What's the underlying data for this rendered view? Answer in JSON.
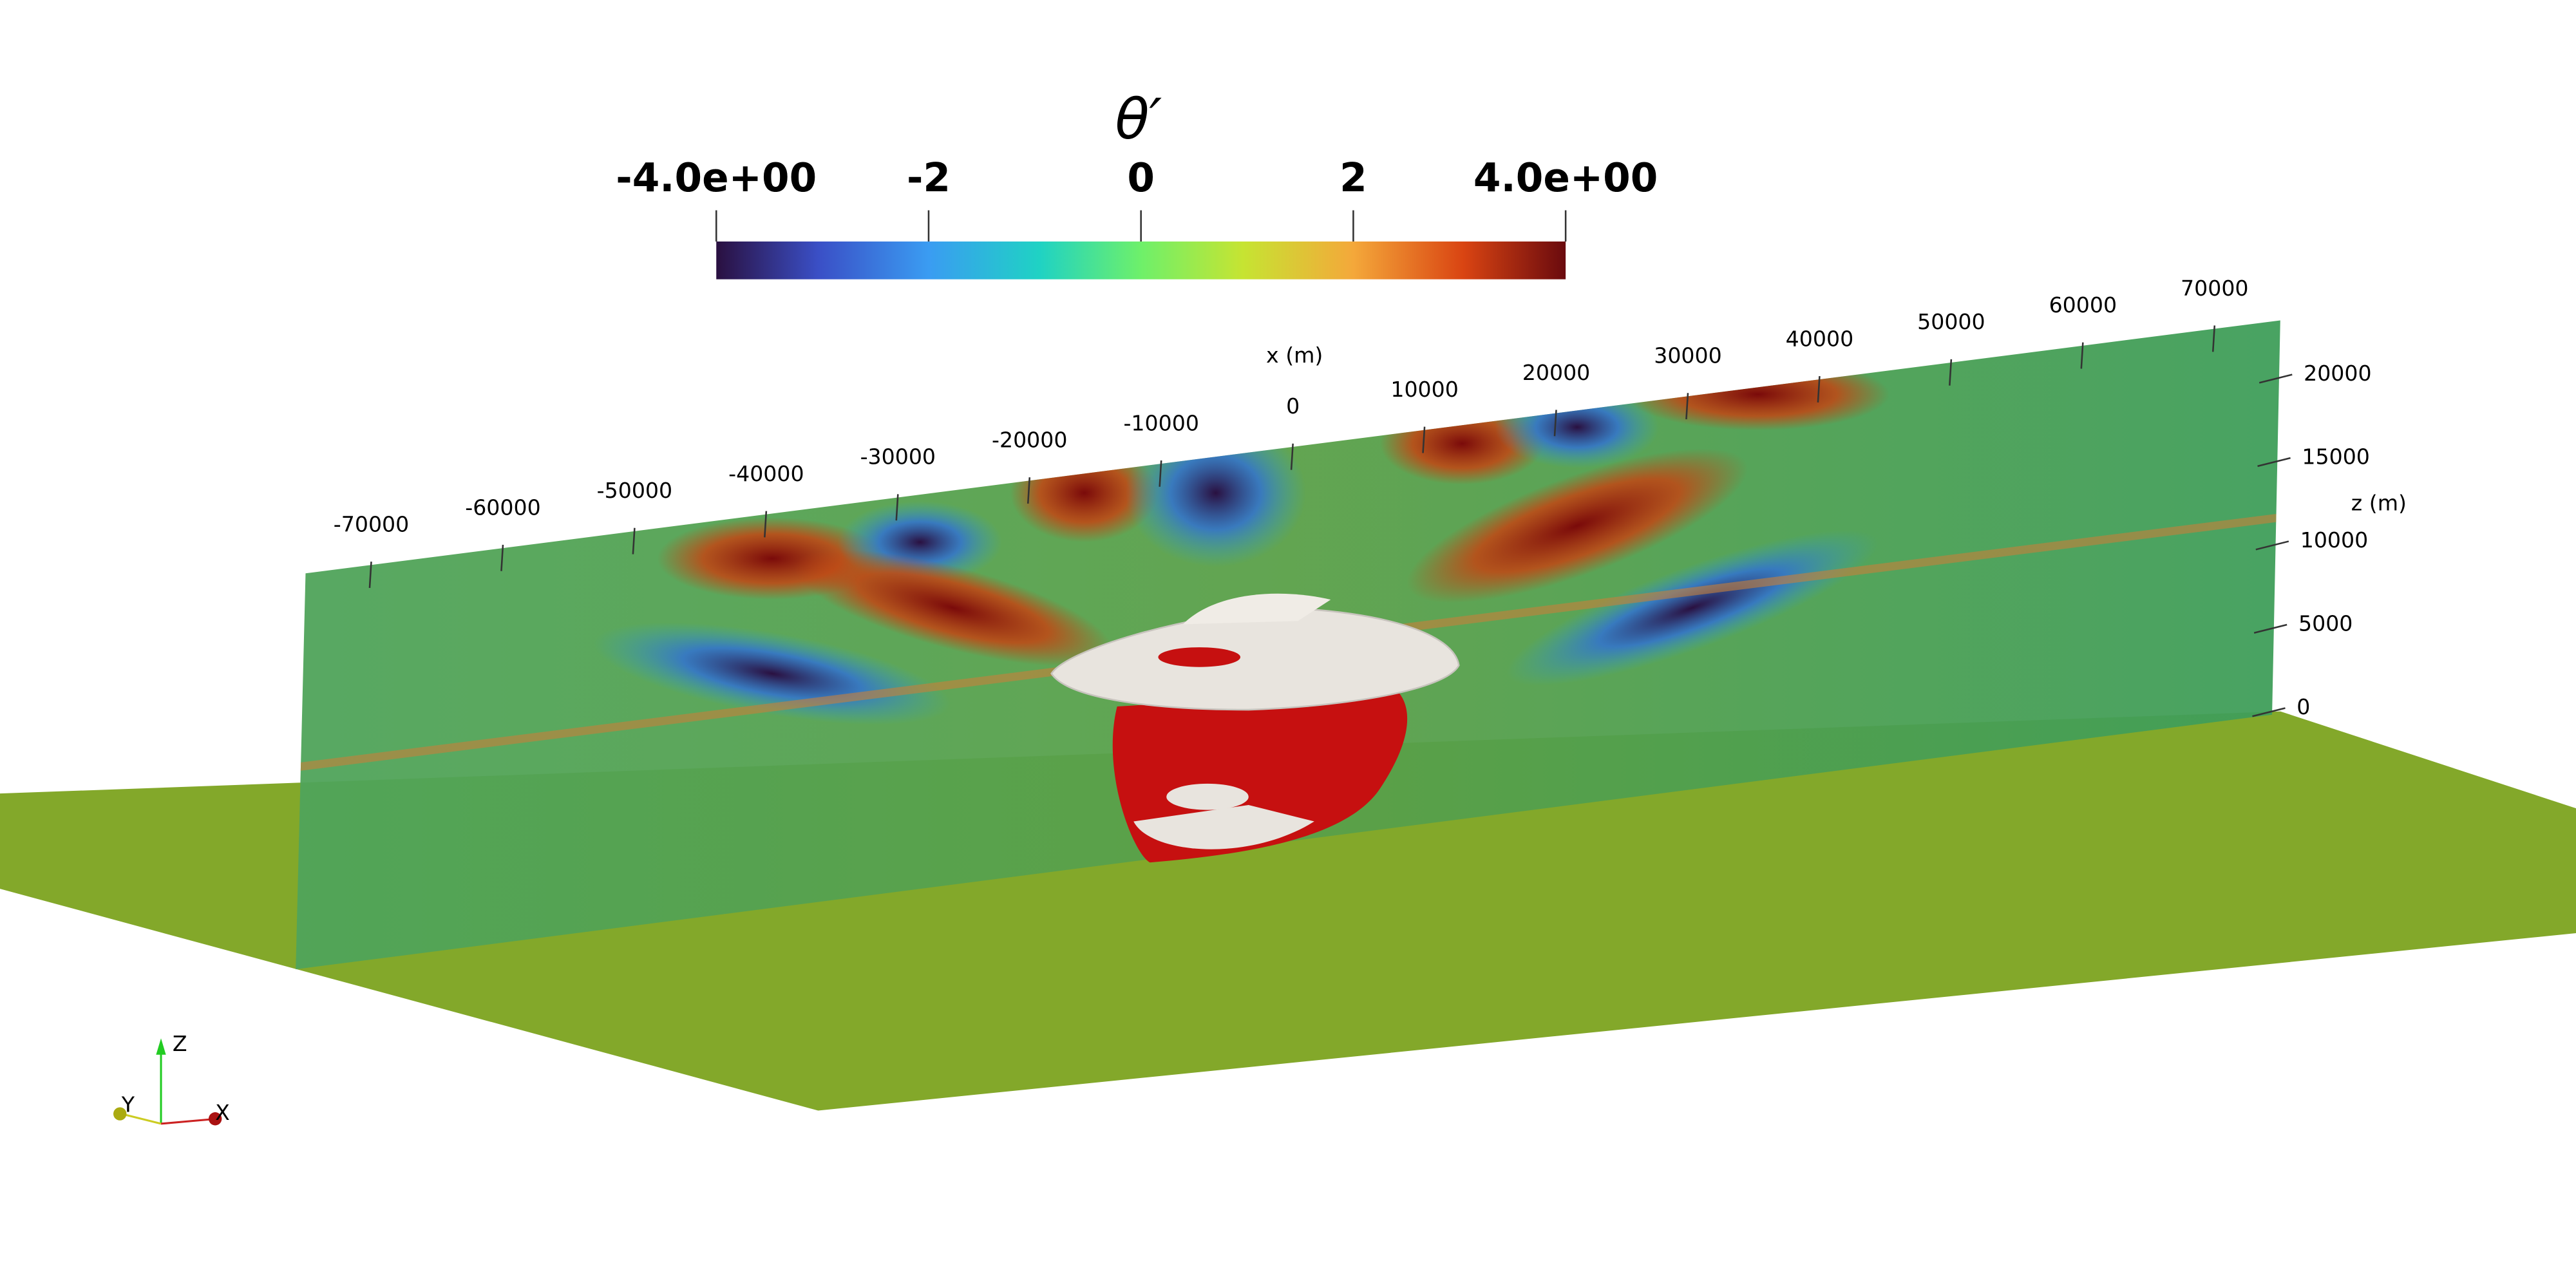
{
  "colorbar": {
    "title": "θ′",
    "range": [
      -4,
      4
    ],
    "ticks": [
      {
        "value": -4,
        "label": "-4.0e+00"
      },
      -2,
      0,
      2,
      {
        "value": 4,
        "label": "4.0e+00"
      }
    ]
  },
  "x_axis": {
    "label": "x (m)",
    "range": [
      -70000,
      70000
    ],
    "ticks": [
      -70000,
      -60000,
      -50000,
      -40000,
      -30000,
      -20000,
      -10000,
      0,
      10000,
      20000,
      30000,
      40000,
      50000,
      60000,
      70000
    ]
  },
  "z_axis": {
    "label": "z (m)",
    "range": [
      0,
      20000
    ],
    "ticks": [
      0,
      5000,
      10000,
      15000,
      20000
    ]
  },
  "orientation_axes": {
    "x": "X",
    "y": "Y",
    "z": "Z"
  }
}
